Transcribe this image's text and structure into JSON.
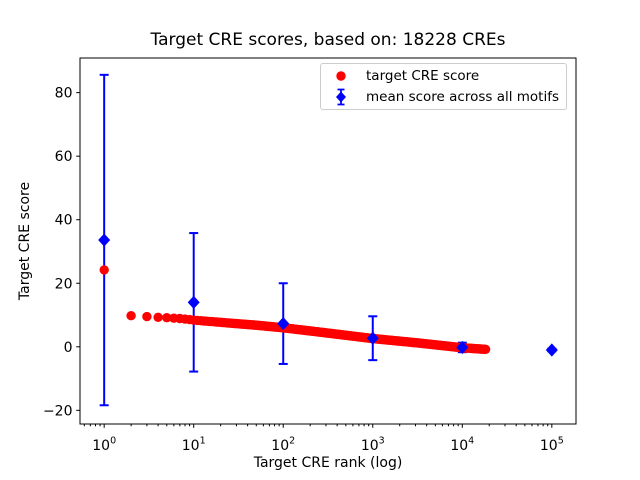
{
  "chart_data": {
    "type": "scatter",
    "title": "Target CRE scores, based on: 18228 CREs",
    "xlabel": "Target CRE rank (log)",
    "ylabel": "Target CRE score",
    "x_scale": "log",
    "grid": false,
    "xlim_log10": [
      -0.27,
      5.27
    ],
    "ylim": [
      -24.3,
      90.9
    ],
    "x_tick_base": "10",
    "x_major_ticks": [
      {
        "value": 1,
        "exp": 0
      },
      {
        "value": 10,
        "exp": 1
      },
      {
        "value": 100,
        "exp": 2
      },
      {
        "value": 1000,
        "exp": 3
      },
      {
        "value": 10000,
        "exp": 4
      },
      {
        "value": 100000,
        "exp": 5
      }
    ],
    "y_ticks": [
      -20,
      0,
      20,
      40,
      60,
      80
    ],
    "series": [
      {
        "name": "target CRE score",
        "type": "scatter",
        "marker": "circle",
        "color": "#ff0000",
        "n_points": 18228,
        "x_is_integer_rank": true,
        "anchor_points": [
          [
            1,
            24.2
          ],
          [
            2,
            9.8
          ],
          [
            3,
            9.5
          ],
          [
            4,
            9.3
          ],
          [
            5,
            9.15
          ],
          [
            7,
            8.9
          ],
          [
            10,
            8.4
          ],
          [
            20,
            7.7
          ],
          [
            50,
            6.8
          ],
          [
            100,
            6.0
          ],
          [
            300,
            4.4
          ],
          [
            1000,
            2.6
          ],
          [
            3000,
            1.3
          ],
          [
            10000,
            -0.3
          ],
          [
            18228,
            -0.8
          ]
        ]
      },
      {
        "name": "mean score across all motifs",
        "type": "errorbar",
        "marker": "diamond",
        "color": "#0000ff",
        "points": [
          {
            "x": 1,
            "mean": 33.6,
            "std": 52.0
          },
          {
            "x": 10,
            "mean": 14.0,
            "std": 21.8
          },
          {
            "x": 100,
            "mean": 7.3,
            "std": 12.7
          },
          {
            "x": 1000,
            "mean": 2.7,
            "std": 6.9
          },
          {
            "x": 10000,
            "mean": -0.2,
            "std": 1.5
          },
          {
            "x": 100000,
            "mean": -1.0,
            "std": 0.4
          }
        ]
      }
    ]
  },
  "legend": {
    "position": "upper right",
    "items": [
      {
        "label": "target CRE score",
        "marker": "circle",
        "color": "#ff0000"
      },
      {
        "label": "mean score across all motifs",
        "marker": "diamond-errorbar",
        "color": "#0000ff"
      }
    ]
  },
  "colors": {
    "axes": "#000000",
    "background": "#ffffff",
    "legend_border": "#cccccc"
  }
}
